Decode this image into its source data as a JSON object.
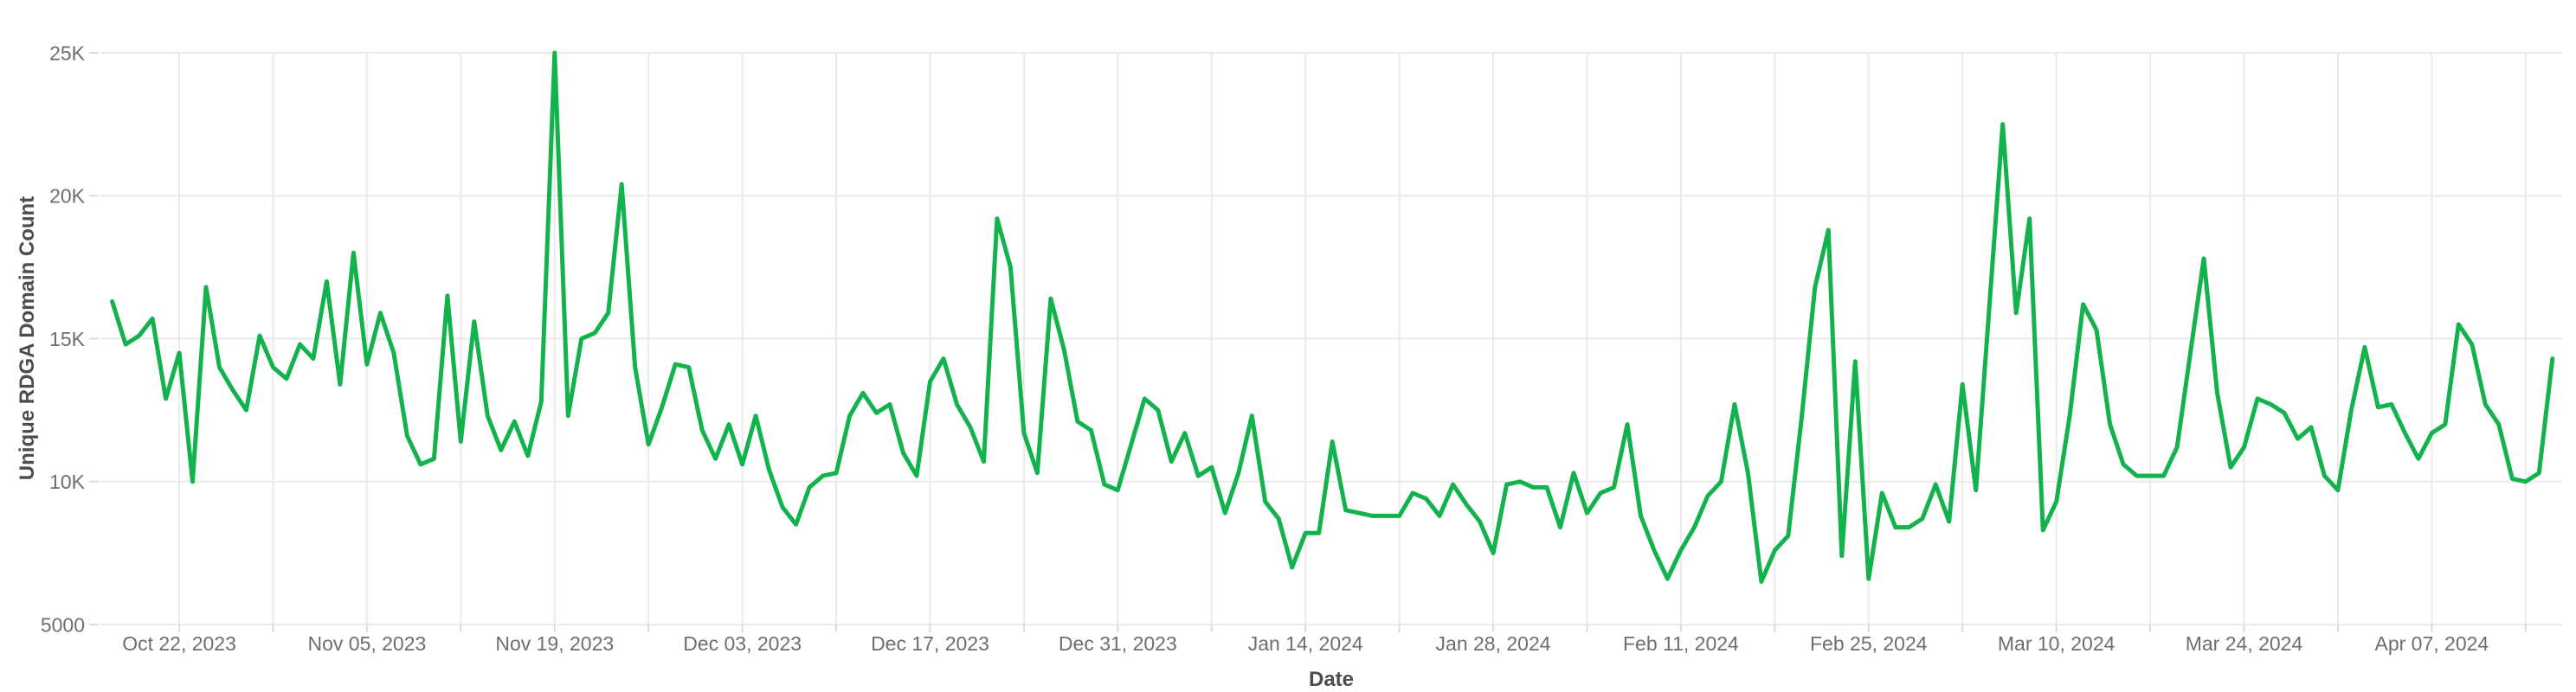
{
  "chart_data": {
    "type": "line",
    "title": "",
    "xlabel": "Date",
    "ylabel": "Unique RDGA Domain Count",
    "legend_position": "none",
    "grid": "on",
    "background_color": "#ffffff",
    "line_color": "#12b24c",
    "grid_color": "#eaeaea",
    "tick_mark_color": "#dcdcdc",
    "tick_label_color": "#6e6e6e",
    "axis_title_color": "#4d4d4d",
    "ylim": [
      5000,
      25000
    ],
    "y_ticks": [
      {
        "value": 25000,
        "label": "25K"
      },
      {
        "value": 20000,
        "label": "20K"
      },
      {
        "value": 15000,
        "label": "15K"
      },
      {
        "value": 10000,
        "label": "10K"
      },
      {
        "value": 5000,
        "label": "5000"
      }
    ],
    "x_start_date": "2023-10-17",
    "x_end_date": "2024-04-16",
    "x_frequency": "daily",
    "x_gridlines": {
      "first_point_index": 5,
      "every_n_points": 7,
      "label_every_n_gridlines": 2
    },
    "x_tick_labels": [
      "Oct 22, 2023",
      "Nov 05, 2023",
      "Nov 19, 2023",
      "Dec 03, 2023",
      "Dec 17, 2023",
      "Dec 31, 2023",
      "Jan 14, 2024",
      "Jan 28, 2024",
      "Feb 11, 2024",
      "Feb 25, 2024",
      "Mar 10, 2024",
      "Mar 24, 2024",
      "Apr 07, 2024"
    ],
    "series": [
      {
        "name": "Unique RDGA Domain Count",
        "values": [
          16300,
          14800,
          15100,
          15700,
          12900,
          14500,
          10000,
          16800,
          14000,
          13200,
          12500,
          15100,
          14000,
          13600,
          14800,
          14300,
          17000,
          13400,
          18000,
          14100,
          15900,
          14500,
          11600,
          10600,
          10800,
          16500,
          11400,
          15600,
          12300,
          11100,
          12100,
          10900,
          12800,
          25000,
          12300,
          15000,
          15200,
          15900,
          20400,
          14000,
          11300,
          12600,
          14100,
          14000,
          11800,
          10800,
          12000,
          10600,
          12300,
          10400,
          9100,
          8500,
          9800,
          10200,
          10300,
          12300,
          13100,
          12400,
          12700,
          11000,
          10200,
          13500,
          14300,
          12700,
          11900,
          10700,
          19200,
          17500,
          11700,
          10300,
          16400,
          14600,
          12100,
          11800,
          9900,
          9700,
          11300,
          12900,
          12500,
          10700,
          11700,
          10200,
          10500,
          8900,
          10300,
          12300,
          9300,
          8700,
          7000,
          8200,
          8200,
          11400,
          9000,
          8900,
          8800,
          8800,
          8800,
          9600,
          9400,
          8800,
          9900,
          9200,
          8600,
          7500,
          9900,
          10000,
          9800,
          9800,
          8400,
          10300,
          8900,
          9600,
          9800,
          12000,
          8800,
          7600,
          6600,
          7600,
          8400,
          9500,
          10000,
          12700,
          10300,
          6500,
          7600,
          8100,
          12200,
          16800,
          18800,
          7400,
          14200,
          6600,
          9600,
          8400,
          8400,
          8700,
          9900,
          8600,
          13400,
          9700,
          16100,
          22500,
          15900,
          19200,
          8300,
          9300,
          12300,
          16200,
          15300,
          12000,
          10600,
          10200,
          10200,
          10200,
          11200,
          14500,
          17800,
          13100,
          10500,
          11200,
          12900,
          12700,
          12400,
          11500,
          11900,
          10200,
          9700,
          12500,
          14700,
          12600,
          12700,
          11700,
          10800,
          11700,
          12000,
          15500,
          14800,
          12700,
          12000,
          10100,
          10000,
          10300,
          14300
        ]
      }
    ]
  }
}
